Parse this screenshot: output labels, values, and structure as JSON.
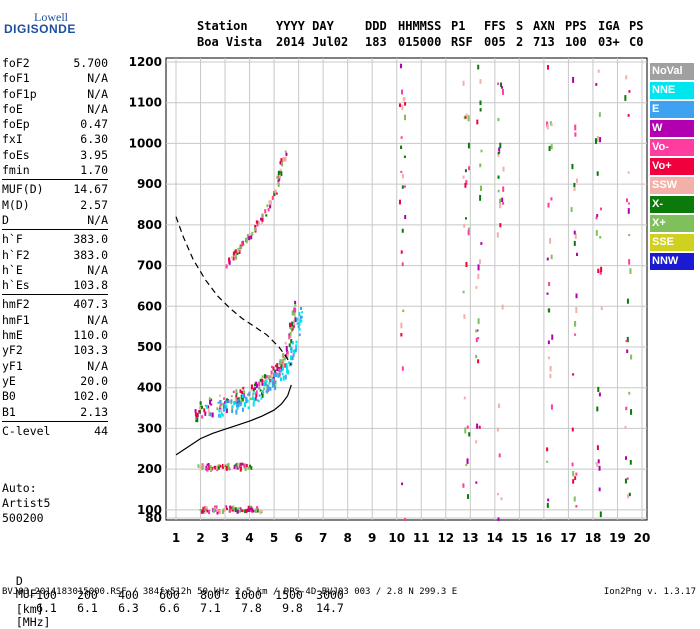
{
  "logo": {
    "line1": "Lowell",
    "line2": "DIGISONDE"
  },
  "header": {
    "labels": [
      "Station",
      "YYYY DAY",
      "DDD",
      "HHMMSS",
      "P1",
      "FFS",
      "S",
      "AXN",
      "PPS",
      "IGA",
      "PS"
    ],
    "values": [
      "Boa Vista",
      "2014 Jul02",
      "183",
      "015000",
      "RSF",
      "005",
      "2",
      "713",
      "100",
      "03+",
      "C0"
    ]
  },
  "params": {
    "group1": [
      [
        "foF2",
        "5.700"
      ],
      [
        "foF1",
        "N/A"
      ],
      [
        "foF1p",
        "N/A"
      ],
      [
        "foE",
        "N/A"
      ],
      [
        "foEp",
        "0.47"
      ],
      [
        "fxI",
        "6.30"
      ],
      [
        "foEs",
        "3.95"
      ],
      [
        "fmin",
        "1.70"
      ]
    ],
    "group2": [
      [
        "MUF(D)",
        "14.67"
      ],
      [
        "M(D)",
        "2.57"
      ],
      [
        "D",
        "N/A"
      ]
    ],
    "group3": [
      [
        "h`F",
        "383.0"
      ],
      [
        "h`F2",
        "383.0"
      ],
      [
        "h`E",
        "N/A"
      ],
      [
        "h`Es",
        "103.8"
      ]
    ],
    "group4": [
      [
        "hmF2",
        "407.3"
      ],
      [
        "hmF1",
        "N/A"
      ],
      [
        "hmE",
        "110.0"
      ],
      [
        "yF2",
        "103.3"
      ],
      [
        "yF1",
        "N/A"
      ],
      [
        "yE",
        "20.0"
      ],
      [
        "B0",
        "102.0"
      ],
      [
        "B1",
        "2.13"
      ]
    ],
    "group5": [
      [
        "C-level",
        "44"
      ]
    ]
  },
  "auto": {
    "l1": "Auto:",
    "l2": "Artist5",
    "l3": "500200"
  },
  "bottom": {
    "d_label": "D",
    "d_values": [
      "100",
      "200",
      "400",
      "600",
      "800",
      "1000",
      "1500",
      "3000"
    ],
    "d_unit": "[km]",
    "muf_label": "MUF",
    "muf_values": [
      "6.1",
      "6.1",
      "6.3",
      "6.6",
      "7.1",
      "7.8",
      "9.8",
      "14.7"
    ],
    "muf_unit": "[MHz]"
  },
  "footer": {
    "left": "BVJ03_2014183015000.RSF / 384fx512h 50 kHz 2.5 km / DPS-4D BVJ03 003 / 2.8 N 299.3 E",
    "right": "Ion2Png v. 1.3.17"
  },
  "legend": [
    {
      "label": "NoVal",
      "color": "#a0a0a0"
    },
    {
      "label": "NNE",
      "color": "#00e5ee"
    },
    {
      "label": "E",
      "color": "#3ea2f0"
    },
    {
      "label": "W",
      "color": "#b000b0"
    },
    {
      "label": "Vo-",
      "color": "#ff3ca0"
    },
    {
      "label": "Vo+",
      "color": "#f0003c"
    },
    {
      "label": "SSW",
      "color": "#f2b0a8"
    },
    {
      "label": "X-",
      "color": "#0b7a0b"
    },
    {
      "label": "X+",
      "color": "#7fbf5c"
    },
    {
      "label": "SSE",
      "color": "#d0d020"
    },
    {
      "label": "NNW",
      "color": "#1a1ad0"
    }
  ],
  "chart_data": {
    "type": "scatter",
    "title": "",
    "xlabel": "",
    "ylabel": "",
    "xlim": [
      1,
      20
    ],
    "ylim": [
      80,
      1200
    ],
    "xticks": [
      1,
      2,
      3,
      4,
      5,
      6,
      7,
      8,
      9,
      10,
      11,
      12,
      13,
      14,
      15,
      16,
      17,
      18,
      19,
      20
    ],
    "yticks": [
      80,
      100,
      200,
      300,
      400,
      500,
      600,
      700,
      800,
      900,
      1000,
      1100,
      1200
    ],
    "grid": true,
    "legend_position": "right",
    "profile_curve": [
      [
        1,
        235
      ],
      [
        1.5,
        255
      ],
      [
        2,
        275
      ],
      [
        2.5,
        288
      ],
      [
        3,
        298
      ],
      [
        3.5,
        308
      ],
      [
        4,
        318
      ],
      [
        4.5,
        330
      ],
      [
        5,
        345
      ],
      [
        5.3,
        360
      ],
      [
        5.55,
        380
      ],
      [
        5.7,
        407
      ]
    ],
    "dashed_curve": [
      [
        1,
        820
      ],
      [
        1.3,
        770
      ],
      [
        1.7,
        715
      ],
      [
        2.2,
        665
      ],
      [
        2.7,
        625
      ],
      [
        3.2,
        595
      ],
      [
        3.7,
        570
      ],
      [
        4.2,
        550
      ],
      [
        4.7,
        530
      ],
      [
        5.2,
        500
      ],
      [
        5.5,
        475
      ],
      [
        5.7,
        455
      ]
    ],
    "traces": [
      {
        "name": "o-trace",
        "points": [
          [
            1.75,
            345
          ],
          [
            2,
            350
          ],
          [
            2.5,
            360
          ],
          [
            3,
            368
          ],
          [
            3.5,
            378
          ],
          [
            4,
            390
          ],
          [
            4.3,
            400
          ],
          [
            4.6,
            415
          ],
          [
            4.9,
            430
          ],
          [
            5.1,
            448
          ],
          [
            5.3,
            470
          ],
          [
            5.5,
            500
          ],
          [
            5.7,
            550
          ],
          [
            5.8,
            600
          ]
        ]
      },
      {
        "name": "x-trace",
        "points": [
          [
            2.3,
            345
          ],
          [
            3,
            355
          ],
          [
            3.6,
            365
          ],
          [
            4.2,
            380
          ],
          [
            4.8,
            405
          ],
          [
            5.2,
            430
          ],
          [
            5.6,
            470
          ],
          [
            5.9,
            530
          ],
          [
            6.1,
            600
          ]
        ]
      },
      {
        "name": "second-hop",
        "points": [
          [
            3,
            700
          ],
          [
            3.5,
            745
          ],
          [
            4,
            780
          ],
          [
            4.5,
            820
          ],
          [
            5,
            880
          ],
          [
            5.2,
            930
          ],
          [
            5.4,
            980
          ]
        ]
      },
      {
        "name": "es-layer",
        "points": [
          [
            1.8,
            105
          ],
          [
            2.5,
            105
          ],
          [
            3,
            105
          ],
          [
            3.5,
            105
          ],
          [
            4,
            106
          ],
          [
            4.5,
            103
          ]
        ]
      },
      {
        "name": "es-multiple",
        "points": [
          [
            1.9,
            210
          ],
          [
            2.5,
            210
          ],
          [
            3,
            210
          ],
          [
            3.5,
            210
          ],
          [
            4,
            210
          ]
        ]
      }
    ],
    "interference_columns": [
      10.2,
      12.8,
      13.3,
      14.2,
      16.2,
      17.2,
      18.2,
      19.4
    ]
  }
}
